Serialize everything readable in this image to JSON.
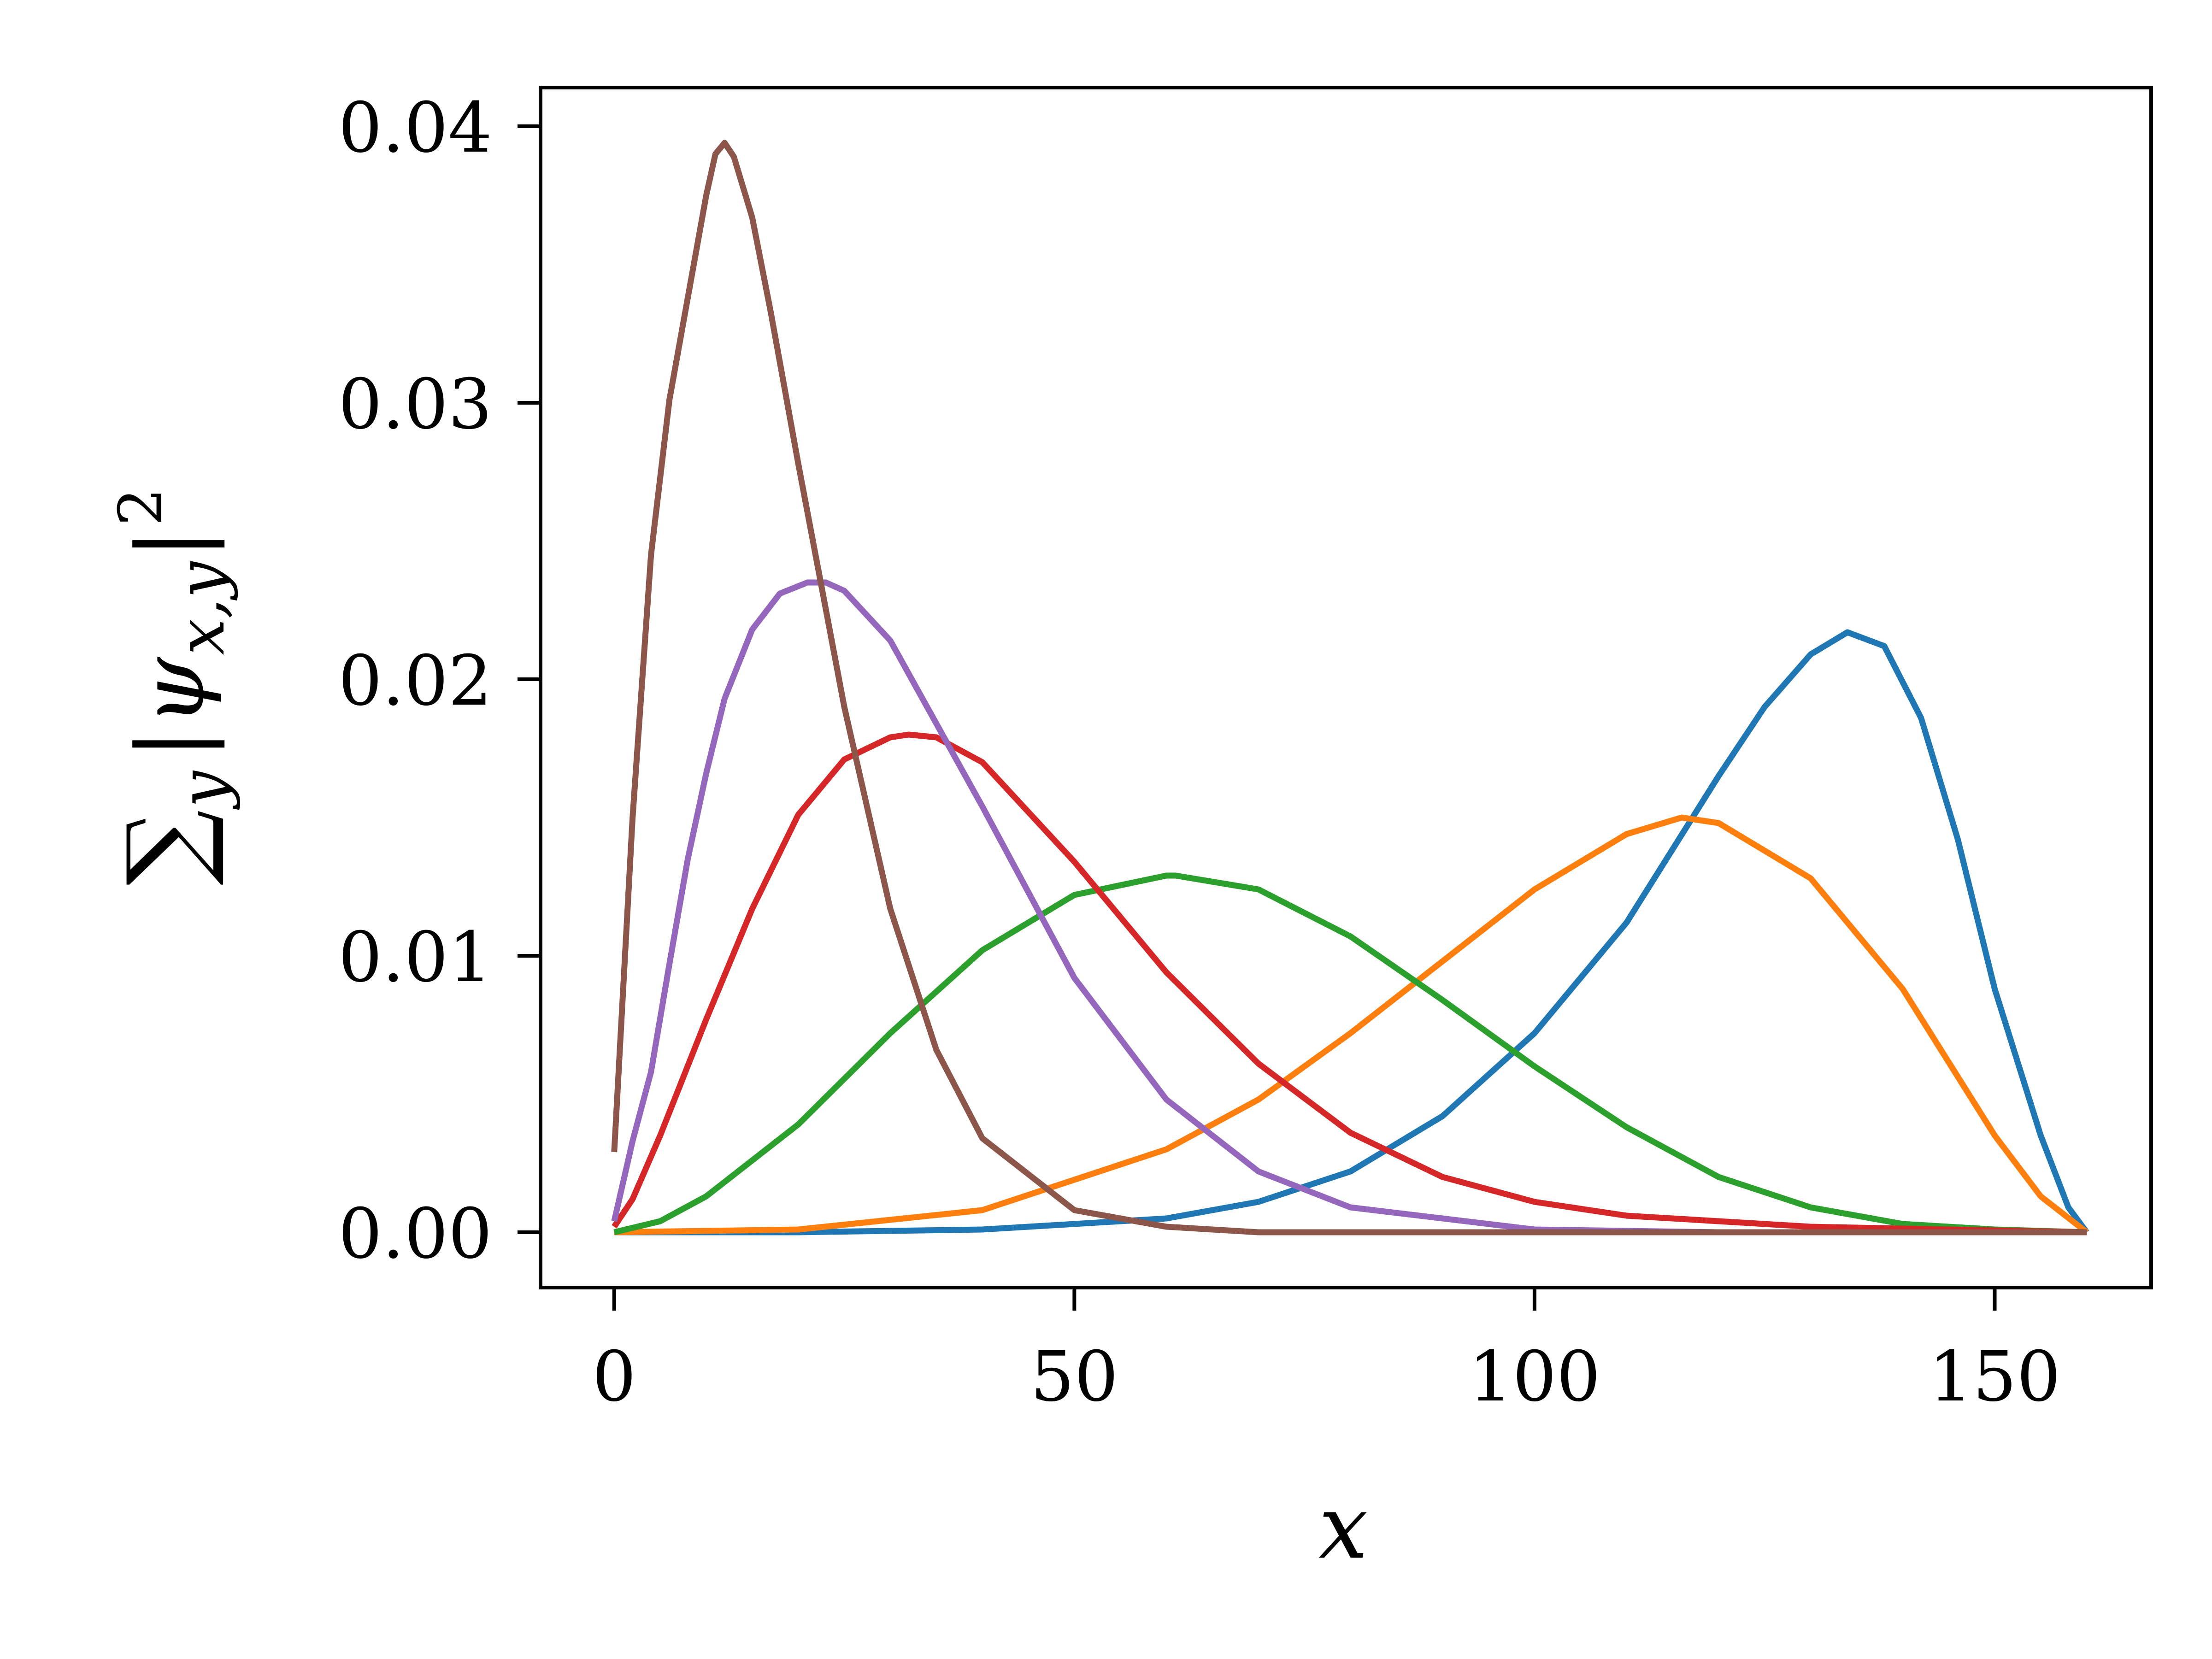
{
  "chart_data": {
    "type": "line",
    "xlabel": "x",
    "ylabel": {
      "sum_symbol": "∑",
      "sum_subscript": "y",
      "bar_open": "|",
      "psi": "ψ",
      "psi_subscript": "x,y",
      "bar_close": "|",
      "power": "2"
    },
    "xlim": [
      -8,
      167
    ],
    "ylim": [
      -0.002,
      0.0414
    ],
    "x_ticks": [
      0,
      50,
      100,
      150
    ],
    "x_tick_labels": [
      "0",
      "50",
      "100",
      "150"
    ],
    "y_ticks": [
      0.0,
      0.01,
      0.02,
      0.03,
      0.04
    ],
    "y_tick_labels": [
      "0.00",
      "0.01",
      "0.02",
      "0.03",
      "0.04"
    ],
    "grid": false,
    "legend": "none",
    "series": [
      {
        "color": "#1f77b4",
        "x": [
          0,
          20,
          40,
          60,
          70,
          80,
          90,
          100,
          110,
          120,
          125,
          130,
          134,
          138,
          142,
          146,
          150,
          155,
          158,
          160
        ],
        "y": [
          0.0,
          0.0,
          0.0001,
          0.0005,
          0.0011,
          0.0022,
          0.0042,
          0.0072,
          0.0112,
          0.0165,
          0.019,
          0.0209,
          0.0217,
          0.0212,
          0.0186,
          0.0142,
          0.0088,
          0.0035,
          0.0009,
          0.0
        ]
      },
      {
        "color": "#ff7f0e",
        "x": [
          0,
          20,
          40,
          60,
          70,
          80,
          90,
          100,
          110,
          116,
          120,
          130,
          140,
          150,
          155,
          160
        ],
        "y": [
          0.0,
          0.0001,
          0.0008,
          0.003,
          0.0048,
          0.0072,
          0.0098,
          0.0124,
          0.0144,
          0.015,
          0.0148,
          0.0128,
          0.0088,
          0.0035,
          0.0013,
          0.0
        ]
      },
      {
        "color": "#2ca02c",
        "x": [
          0,
          5,
          10,
          20,
          30,
          40,
          50,
          60,
          61,
          70,
          80,
          90,
          100,
          110,
          120,
          130,
          140,
          150,
          160
        ],
        "y": [
          0.0,
          0.0004,
          0.0013,
          0.0039,
          0.0072,
          0.0102,
          0.0122,
          0.0129,
          0.0129,
          0.0124,
          0.0107,
          0.0084,
          0.006,
          0.0038,
          0.002,
          0.0009,
          0.0003,
          0.0001,
          0.0
        ]
      },
      {
        "color": "#d62728",
        "x": [
          0,
          2,
          5,
          10,
          15,
          20,
          25,
          30,
          32,
          35,
          40,
          50,
          60,
          70,
          80,
          90,
          100,
          110,
          130,
          160
        ],
        "y": [
          0.0002,
          0.0012,
          0.0035,
          0.0077,
          0.0117,
          0.0151,
          0.0171,
          0.0179,
          0.018,
          0.0179,
          0.017,
          0.0134,
          0.0094,
          0.0061,
          0.0036,
          0.002,
          0.0011,
          0.0006,
          0.0002,
          0.0
        ]
      },
      {
        "color": "#9467bd",
        "x": [
          0,
          2,
          4,
          6,
          8,
          10,
          12,
          15,
          18,
          21,
          23,
          25,
          30,
          40,
          50,
          60,
          70,
          80,
          100,
          120,
          160
        ],
        "y": [
          0.0004,
          0.0033,
          0.0058,
          0.0097,
          0.0135,
          0.0166,
          0.0193,
          0.0218,
          0.0231,
          0.0235,
          0.0235,
          0.0232,
          0.0214,
          0.0154,
          0.0092,
          0.0048,
          0.0022,
          0.0009,
          0.0001,
          0.0,
          0.0
        ]
      },
      {
        "color": "#8c564b",
        "x": [
          0,
          2,
          4,
          6,
          8,
          10,
          11,
          12,
          13,
          15,
          17,
          20,
          25,
          30,
          35,
          40,
          50,
          60,
          70,
          80,
          100,
          160
        ],
        "y": [
          0.0029,
          0.015,
          0.0245,
          0.0301,
          0.0338,
          0.0375,
          0.039,
          0.0394,
          0.0389,
          0.0367,
          0.0333,
          0.0278,
          0.019,
          0.0117,
          0.0066,
          0.0034,
          0.0008,
          0.0002,
          0.0,
          0.0,
          0.0,
          0.0
        ]
      }
    ]
  }
}
